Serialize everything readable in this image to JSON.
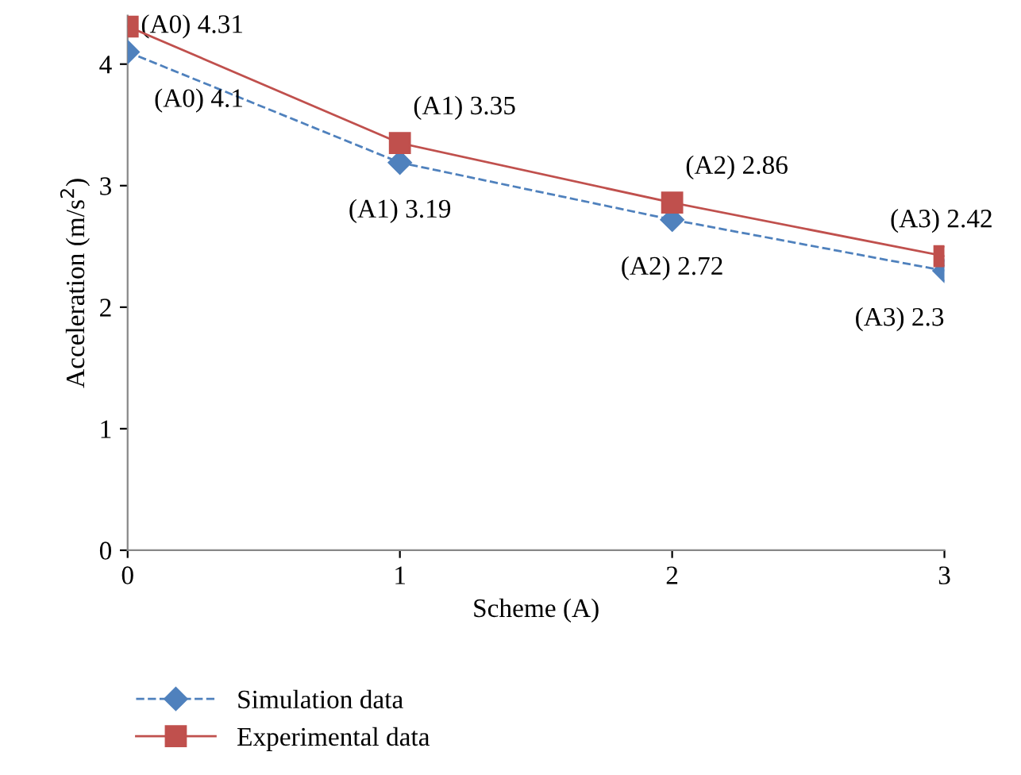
{
  "chart_data": {
    "type": "line",
    "xlabel": "Scheme (A)",
    "ylabel": "Acceleration (m/s$^{2}$)",
    "x": [
      0,
      1,
      2,
      3
    ],
    "xlim": [
      0,
      3
    ],
    "xticks": [
      0,
      1,
      2,
      3
    ],
    "ylim": [
      0,
      4.4
    ],
    "yticks": [
      0,
      1,
      2,
      3,
      4
    ],
    "grid": false,
    "legend": "bottom",
    "series": [
      {
        "name": "Simulation data",
        "color": "#4f81bd",
        "marker": "diamond",
        "line_style": "dashed",
        "values": [
          4.1,
          3.19,
          2.72,
          2.3
        ],
        "value_labels": [
          "(A0) 4.1",
          "(A1) 3.19",
          "(A2) 2.72",
          "(A3) 2.3"
        ]
      },
      {
        "name": "Experimental data",
        "color": "#c0504d",
        "marker": "square",
        "line_style": "solid",
        "values": [
          4.31,
          3.35,
          2.86,
          2.42
        ],
        "value_labels": [
          "(A0) 4.31",
          "(A1) 3.35",
          "(A2) 2.86",
          "(A3) 2.42"
        ]
      }
    ]
  }
}
